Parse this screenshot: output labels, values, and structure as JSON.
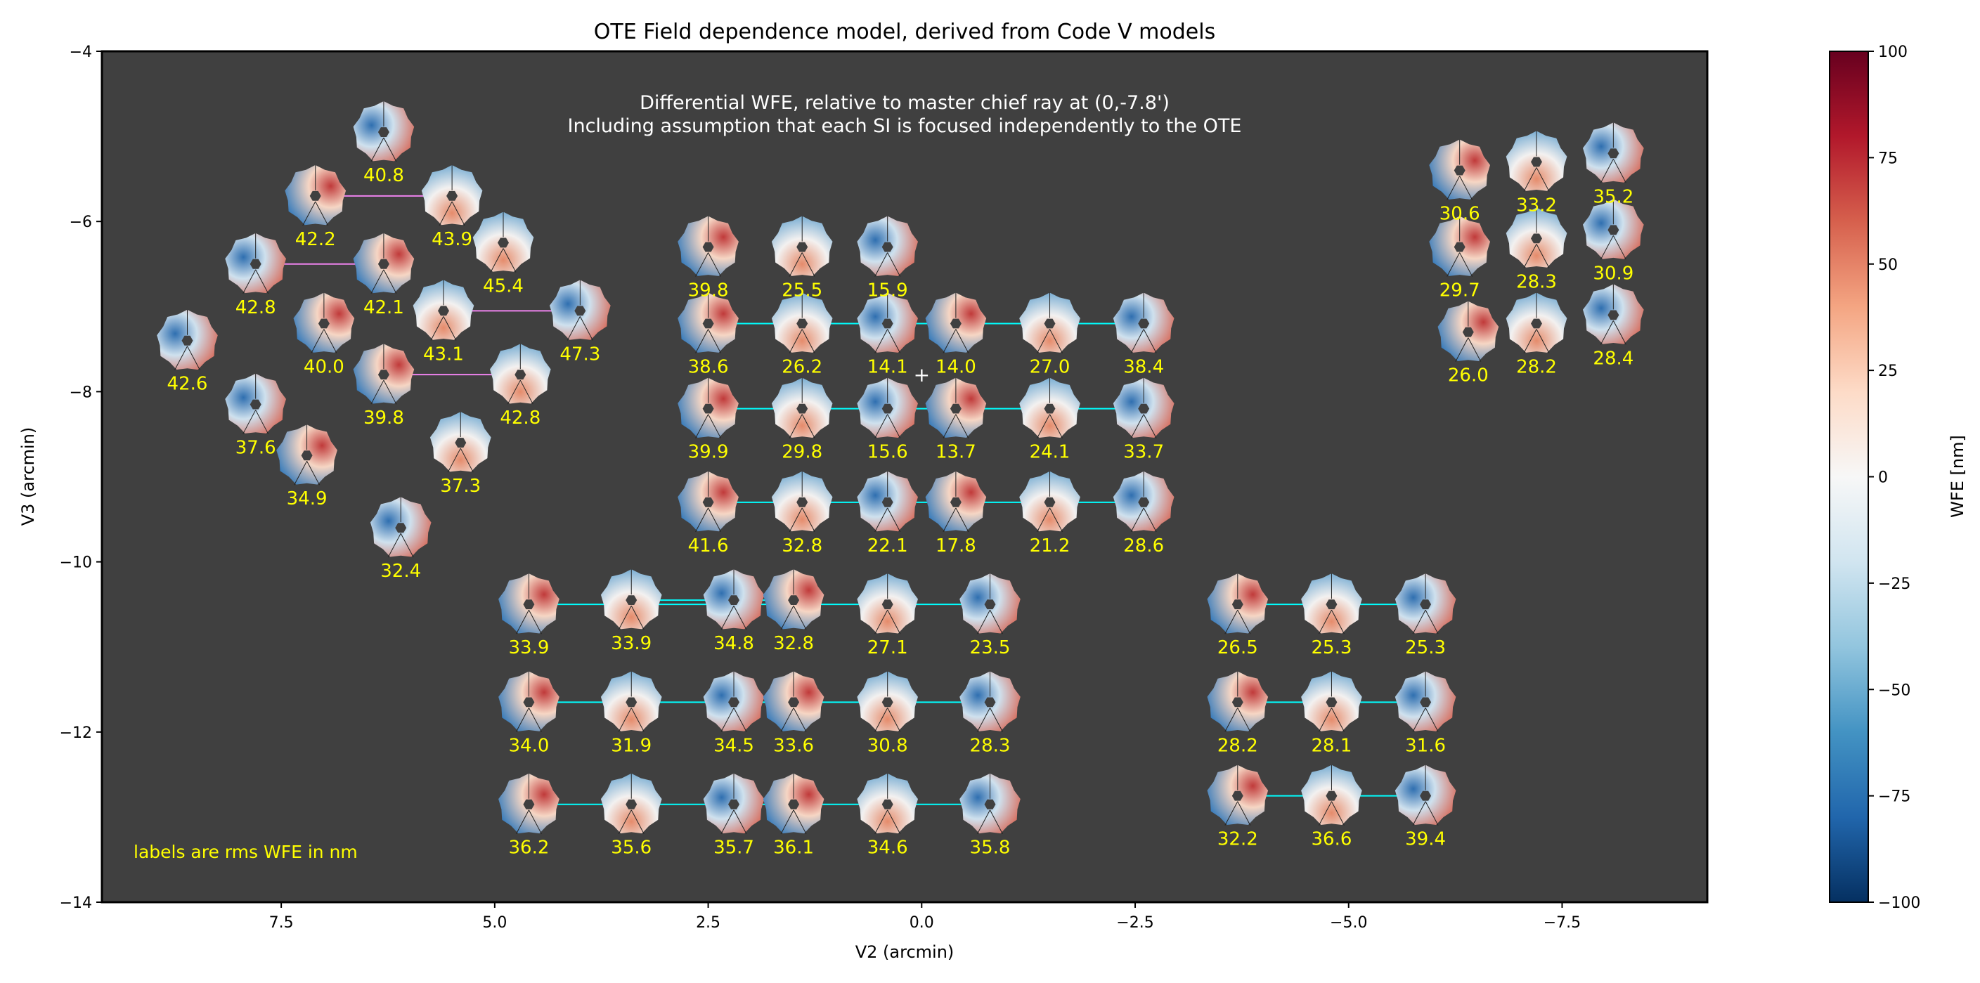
{
  "chart_data": {
    "type": "scatter",
    "title": "OTE Field dependence model, derived from Code V models",
    "subtitle_lines": [
      "Differential WFE, relative to master chief ray at (0,-7.8')",
      "Including assumption that each SI is focused independently to the OTE"
    ],
    "xlabel": "V2 (arcmin)",
    "ylabel": "V3 (arcmin)",
    "xlim": [
      9.6,
      -9.2
    ],
    "ylim": [
      -14,
      -4
    ],
    "xticks": [
      "7.5",
      "5.0",
      "2.5",
      "0.0",
      "−2.5",
      "−5.0",
      "−7.5"
    ],
    "xtick_values": [
      7.5,
      5.0,
      2.5,
      0.0,
      -2.5,
      -5.0,
      -7.5
    ],
    "yticks": [
      "−4",
      "−6",
      "−8",
      "−10",
      "−12",
      "−14"
    ],
    "ytick_values": [
      -4,
      -6,
      -8,
      -10,
      -12,
      -14
    ],
    "note": "labels are rms WFE in nm",
    "label_color": "#ffff00",
    "plot_background": "#404040",
    "master_chief_ray": {
      "v2": 0,
      "v3": -7.8
    },
    "colorbar": {
      "label": "WFE [nm]",
      "min": -100,
      "max": 100,
      "ticks": [
        "100",
        "75",
        "50",
        "25",
        "0",
        "−25",
        "−50",
        "−75",
        "−100"
      ],
      "tick_values": [
        100,
        75,
        50,
        25,
        0,
        -25,
        -50,
        -75,
        -100
      ],
      "colormap": "RdBu_r"
    },
    "groups": [
      {
        "outline_color": "#ee82ee",
        "points": [
          {
            "v2": 6.3,
            "v3": -4.95,
            "rms": "40.8"
          },
          {
            "v2": 7.1,
            "v3": -5.7,
            "rms": "42.2"
          },
          {
            "v2": 5.5,
            "v3": -5.7,
            "rms": "43.9"
          },
          {
            "v2": 7.8,
            "v3": -6.5,
            "rms": "42.8"
          },
          {
            "v2": 6.3,
            "v3": -6.5,
            "rms": "42.1"
          },
          {
            "v2": 4.9,
            "v3": -6.25,
            "rms": "45.4"
          },
          {
            "v2": 8.6,
            "v3": -7.4,
            "rms": "42.6"
          },
          {
            "v2": 7.0,
            "v3": -7.2,
            "rms": "40.0"
          },
          {
            "v2": 5.6,
            "v3": -7.05,
            "rms": "43.1"
          },
          {
            "v2": 4.0,
            "v3": -7.05,
            "rms": "47.3"
          },
          {
            "v2": 6.3,
            "v3": -7.8,
            "rms": "39.8"
          },
          {
            "v2": 4.7,
            "v3": -7.8,
            "rms": "42.8"
          },
          {
            "v2": 7.8,
            "v3": -8.15,
            "rms": "37.6"
          },
          {
            "v2": 7.2,
            "v3": -8.75,
            "rms": "34.9"
          },
          {
            "v2": 5.4,
            "v3": -8.6,
            "rms": "37.3"
          },
          {
            "v2": 6.1,
            "v3": -9.6,
            "rms": "32.4"
          }
        ]
      },
      {
        "outline_color": "#00ffff",
        "points": [
          {
            "v2": 2.5,
            "v3": -6.3,
            "rms": "39.8",
            "no_link": true
          },
          {
            "v2": 1.4,
            "v3": -6.3,
            "rms": "25.5",
            "no_link": true
          },
          {
            "v2": 0.4,
            "v3": -6.3,
            "rms": "15.9",
            "no_link": true
          },
          {
            "v2": 2.5,
            "v3": -7.2,
            "rms": "38.6"
          },
          {
            "v2": 1.4,
            "v3": -7.2,
            "rms": "26.2"
          },
          {
            "v2": 0.4,
            "v3": -7.2,
            "rms": "14.1"
          },
          {
            "v2": -0.4,
            "v3": -7.2,
            "rms": "14.0"
          },
          {
            "v2": -1.5,
            "v3": -7.2,
            "rms": "27.0"
          },
          {
            "v2": -2.6,
            "v3": -7.2,
            "rms": "38.4"
          },
          {
            "v2": 2.5,
            "v3": -8.2,
            "rms": "39.9"
          },
          {
            "v2": 1.4,
            "v3": -8.2,
            "rms": "29.8"
          },
          {
            "v2": 0.4,
            "v3": -8.2,
            "rms": "15.6"
          },
          {
            "v2": -0.4,
            "v3": -8.2,
            "rms": "13.7"
          },
          {
            "v2": -1.5,
            "v3": -8.2,
            "rms": "24.1"
          },
          {
            "v2": -2.6,
            "v3": -8.2,
            "rms": "33.7"
          },
          {
            "v2": 2.5,
            "v3": -9.3,
            "rms": "41.6"
          },
          {
            "v2": 1.4,
            "v3": -9.3,
            "rms": "32.8"
          },
          {
            "v2": 0.4,
            "v3": -9.3,
            "rms": "22.1"
          },
          {
            "v2": -0.4,
            "v3": -9.3,
            "rms": "17.8"
          },
          {
            "v2": -1.5,
            "v3": -9.3,
            "rms": "21.2"
          },
          {
            "v2": -2.6,
            "v3": -9.3,
            "rms": "28.6"
          }
        ]
      },
      {
        "outline_color": "#00ff00",
        "points": [
          {
            "v2": -6.3,
            "v3": -5.4,
            "rms": "30.6"
          },
          {
            "v2": -7.2,
            "v3": -5.3,
            "rms": "33.2"
          },
          {
            "v2": -8.1,
            "v3": -5.2,
            "rms": "35.2"
          },
          {
            "v2": -6.3,
            "v3": -6.3,
            "rms": "29.7"
          },
          {
            "v2": -7.2,
            "v3": -6.2,
            "rms": "28.3"
          },
          {
            "v2": -8.1,
            "v3": -6.1,
            "rms": "30.9"
          },
          {
            "v2": -6.4,
            "v3": -7.3,
            "rms": "26.0"
          },
          {
            "v2": -7.2,
            "v3": -7.2,
            "rms": "28.2"
          },
          {
            "v2": -8.1,
            "v3": -7.1,
            "rms": "28.4"
          }
        ]
      },
      {
        "outline_color": "#00ffff",
        "points": [
          {
            "v2": 4.6,
            "v3": -10.5,
            "rms": "33.9"
          },
          {
            "v2": 3.4,
            "v3": -10.45,
            "rms": "33.9"
          },
          {
            "v2": 2.2,
            "v3": -10.45,
            "rms": "34.8"
          },
          {
            "v2": 1.5,
            "v3": -10.45,
            "rms": "32.8"
          },
          {
            "v2": 0.4,
            "v3": -10.5,
            "rms": "27.1"
          },
          {
            "v2": -0.8,
            "v3": -10.5,
            "rms": "23.5"
          },
          {
            "v2": 4.6,
            "v3": -11.65,
            "rms": "34.0"
          },
          {
            "v2": 3.4,
            "v3": -11.65,
            "rms": "31.9"
          },
          {
            "v2": 2.2,
            "v3": -11.65,
            "rms": "34.5"
          },
          {
            "v2": 1.5,
            "v3": -11.65,
            "rms": "33.6"
          },
          {
            "v2": 0.4,
            "v3": -11.65,
            "rms": "30.8"
          },
          {
            "v2": -0.8,
            "v3": -11.65,
            "rms": "28.3"
          },
          {
            "v2": 4.6,
            "v3": -12.85,
            "rms": "36.2"
          },
          {
            "v2": 3.4,
            "v3": -12.85,
            "rms": "35.6"
          },
          {
            "v2": 2.2,
            "v3": -12.85,
            "rms": "35.7"
          },
          {
            "v2": 1.5,
            "v3": -12.85,
            "rms": "36.1"
          },
          {
            "v2": 0.4,
            "v3": -12.85,
            "rms": "34.6"
          },
          {
            "v2": -0.8,
            "v3": -12.85,
            "rms": "35.8"
          }
        ]
      },
      {
        "outline_color": "#00ffff",
        "points": [
          {
            "v2": -3.7,
            "v3": -10.5,
            "rms": "26.5"
          },
          {
            "v2": -4.8,
            "v3": -10.5,
            "rms": "25.3"
          },
          {
            "v2": -5.9,
            "v3": -10.5,
            "rms": "25.3"
          },
          {
            "v2": -3.7,
            "v3": -11.65,
            "rms": "28.2"
          },
          {
            "v2": -4.8,
            "v3": -11.65,
            "rms": "28.1"
          },
          {
            "v2": -5.9,
            "v3": -11.65,
            "rms": "31.6"
          },
          {
            "v2": -3.7,
            "v3": -12.75,
            "rms": "32.2"
          },
          {
            "v2": -4.8,
            "v3": -12.75,
            "rms": "36.6"
          },
          {
            "v2": -5.9,
            "v3": -12.75,
            "rms": "39.4"
          }
        ]
      }
    ]
  }
}
